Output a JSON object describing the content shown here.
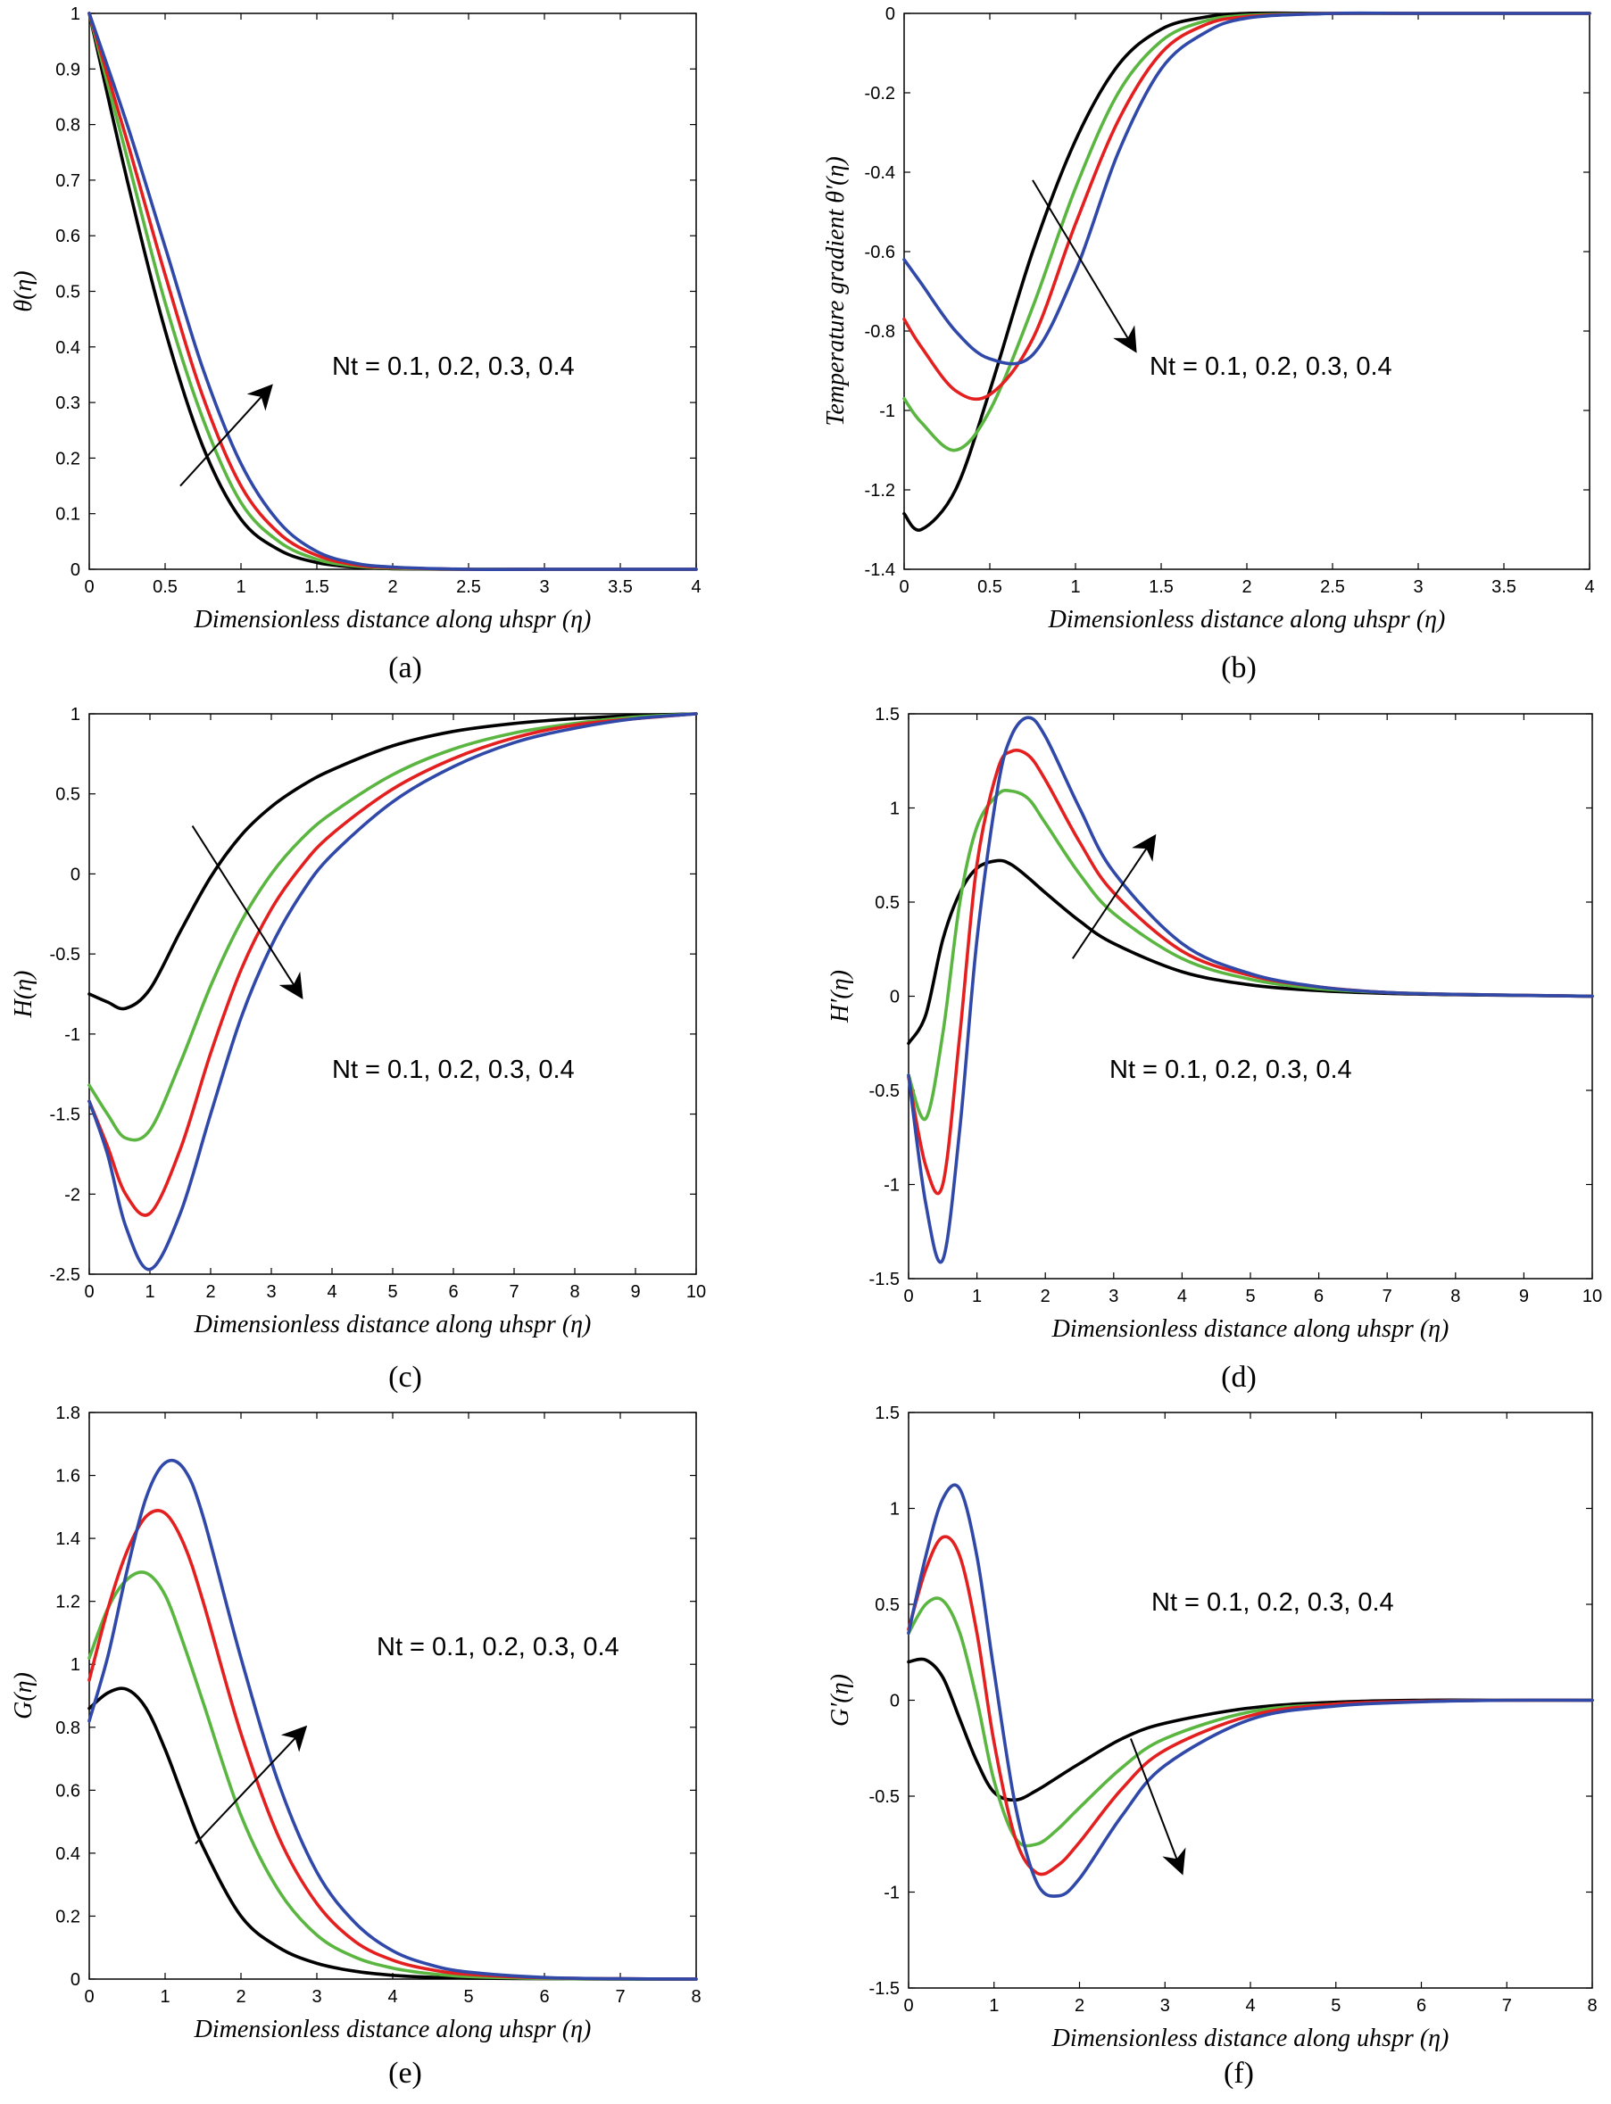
{
  "colors": {
    "Nt_0.1": "#000000",
    "Nt_0.2": "#5ab640",
    "Nt_0.3": "#e3201f",
    "Nt_0.4": "#3048a8",
    "arrow": "#000000"
  },
  "chart_data": [
    {
      "type": "line",
      "panel": "(a)",
      "xlabel": "Dimensionless distance along uhspr (η)",
      "ylabel": "θ(η)",
      "xlim": [
        0,
        4
      ],
      "ylim": [
        0,
        1
      ],
      "xticks": [
        "0",
        "0.5",
        "1",
        "1.5",
        "2",
        "2.5",
        "3",
        "3.5",
        "4"
      ],
      "yticks": [
        "0",
        "0.1",
        "0.2",
        "0.3",
        "0.4",
        "0.5",
        "0.6",
        "0.7",
        "0.8",
        "0.9",
        "1"
      ],
      "annotation": "Nt = 0.1, 0.2, 0.3, 0.4",
      "arrow": {
        "from": [
          0.6,
          0.15
        ],
        "to": [
          1.2,
          0.33
        ]
      },
      "x": [
        0,
        0.25,
        0.5,
        0.75,
        1,
        1.25,
        1.5,
        1.75,
        2,
        2.5,
        3,
        3.5,
        4
      ],
      "series": [
        {
          "values": [
            1,
            0.7,
            0.43,
            0.22,
            0.09,
            0.035,
            0.012,
            0.004,
            0.001,
            0,
            0,
            0,
            0
          ]
        },
        {
          "values": [
            1,
            0.74,
            0.48,
            0.27,
            0.12,
            0.05,
            0.018,
            0.006,
            0.002,
            0,
            0,
            0,
            0
          ]
        },
        {
          "values": [
            1,
            0.77,
            0.53,
            0.31,
            0.15,
            0.065,
            0.025,
            0.008,
            0.003,
            0,
            0,
            0,
            0
          ]
        },
        {
          "values": [
            1,
            0.8,
            0.58,
            0.36,
            0.19,
            0.085,
            0.032,
            0.011,
            0.004,
            0,
            0,
            0,
            0
          ]
        }
      ]
    },
    {
      "type": "line",
      "panel": "(b)",
      "xlabel": "Dimensionless distance along uhspr (η)",
      "ylabel": "Temperature gradient θ′(η)",
      "xlim": [
        0,
        4
      ],
      "ylim": [
        -1.4,
        0
      ],
      "xticks": [
        "0",
        "0.5",
        "1",
        "1.5",
        "2",
        "2.5",
        "3",
        "3.5",
        "4"
      ],
      "yticks": [
        "-1.4",
        "-1.2",
        "-1",
        "-0.8",
        "-0.6",
        "-0.4",
        "-0.2",
        "0"
      ],
      "annotation": "Nt = 0.1, 0.2, 0.3, 0.4",
      "arrow": {
        "from": [
          0.75,
          -0.42
        ],
        "to": [
          1.35,
          -0.85
        ]
      },
      "x": [
        0,
        0.1,
        0.3,
        0.5,
        0.75,
        1,
        1.25,
        1.5,
        1.75,
        2,
        2.5,
        3,
        4
      ],
      "series": [
        {
          "values": [
            -1.26,
            -1.3,
            -1.2,
            -0.95,
            -0.6,
            -0.32,
            -0.13,
            -0.04,
            -0.01,
            0,
            0,
            0,
            0
          ]
        },
        {
          "values": [
            -0.97,
            -1.03,
            -1.1,
            -1.0,
            -0.74,
            -0.44,
            -0.2,
            -0.07,
            -0.02,
            -0.005,
            0,
            0,
            0
          ]
        },
        {
          "values": [
            -0.77,
            -0.84,
            -0.95,
            -0.96,
            -0.82,
            -0.53,
            -0.27,
            -0.1,
            -0.03,
            -0.008,
            0,
            0,
            0
          ]
        },
        {
          "values": [
            -0.62,
            -0.68,
            -0.8,
            -0.87,
            -0.86,
            -0.65,
            -0.35,
            -0.14,
            -0.05,
            -0.012,
            0,
            0,
            0
          ]
        }
      ]
    },
    {
      "type": "line",
      "panel": "(c)",
      "xlabel": "Dimensionless distance along uhspr (η)",
      "ylabel": "H(η)",
      "xlim": [
        0,
        10
      ],
      "ylim": [
        -2.5,
        1
      ],
      "xticks": [
        "0",
        "1",
        "2",
        "3",
        "4",
        "5",
        "6",
        "7",
        "8",
        "9",
        "10"
      ],
      "yticks": [
        "-2.5",
        "-2",
        "-1.5",
        "-1",
        "-0.5",
        "0",
        "0.5",
        "1"
      ],
      "annotation": "Nt = 0.1, 0.2, 0.3, 0.4",
      "arrow": {
        "from": [
          1.7,
          0.3
        ],
        "to": [
          3.5,
          -0.77
        ]
      },
      "x": [
        0,
        0.3,
        0.6,
        1,
        1.5,
        2,
        2.5,
        3,
        3.5,
        4,
        5,
        6,
        7,
        8,
        9,
        10
      ],
      "series": [
        {
          "values": [
            -0.75,
            -0.8,
            -0.84,
            -0.72,
            -0.36,
            -0.02,
            0.24,
            0.42,
            0.55,
            0.65,
            0.8,
            0.89,
            0.94,
            0.97,
            0.99,
            1
          ]
        },
        {
          "values": [
            -1.32,
            -1.5,
            -1.65,
            -1.6,
            -1.18,
            -0.7,
            -0.3,
            0.0,
            0.22,
            0.38,
            0.62,
            0.78,
            0.88,
            0.94,
            0.98,
            1
          ]
        },
        {
          "values": [
            -1.42,
            -1.7,
            -2.0,
            -2.12,
            -1.72,
            -1.12,
            -0.6,
            -0.22,
            0.05,
            0.25,
            0.53,
            0.72,
            0.85,
            0.93,
            0.97,
            1
          ]
        },
        {
          "values": [
            -1.42,
            -1.75,
            -2.2,
            -2.47,
            -2.12,
            -1.5,
            -0.9,
            -0.45,
            -0.12,
            0.12,
            0.45,
            0.67,
            0.82,
            0.91,
            0.97,
            1
          ]
        }
      ]
    },
    {
      "type": "line",
      "panel": "(d)",
      "xlabel": "Dimensionless distance along uhspr (η)",
      "ylabel": "H′(η)",
      "xlim": [
        0,
        10
      ],
      "ylim": [
        -1.5,
        1.5
      ],
      "xticks": [
        "0",
        "1",
        "2",
        "3",
        "4",
        "5",
        "6",
        "7",
        "8",
        "9",
        "10"
      ],
      "yticks": [
        "-1.5",
        "-1",
        "-0.5",
        "0",
        "0.5",
        "1",
        "1.5"
      ],
      "annotation": "Nt = 0.1, 0.2, 0.3, 0.4",
      "arrow": {
        "from": [
          2.4,
          0.2
        ],
        "to": [
          3.6,
          0.85
        ]
      },
      "x": [
        0,
        0.25,
        0.5,
        0.75,
        1,
        1.3,
        1.5,
        1.75,
        2,
        2.5,
        3,
        4,
        5,
        6,
        7,
        8,
        10
      ],
      "series": [
        {
          "values": [
            -0.25,
            -0.1,
            0.3,
            0.55,
            0.68,
            0.72,
            0.7,
            0.63,
            0.55,
            0.4,
            0.28,
            0.13,
            0.06,
            0.03,
            0.015,
            0.008,
            0
          ]
        },
        {
          "values": [
            -0.42,
            -0.65,
            -0.2,
            0.5,
            0.9,
            1.07,
            1.09,
            1.05,
            0.92,
            0.65,
            0.44,
            0.2,
            0.09,
            0.04,
            0.02,
            0.01,
            0
          ]
        },
        {
          "values": [
            -0.43,
            -0.9,
            -1.0,
            -0.2,
            0.7,
            1.2,
            1.3,
            1.28,
            1.15,
            0.82,
            0.55,
            0.24,
            0.11,
            0.05,
            0.02,
            0.01,
            0
          ]
        },
        {
          "values": [
            -0.42,
            -1.1,
            -1.4,
            -0.7,
            0.3,
            1.1,
            1.38,
            1.48,
            1.38,
            1.0,
            0.66,
            0.28,
            0.12,
            0.05,
            0.02,
            0.01,
            0
          ]
        }
      ]
    },
    {
      "type": "line",
      "panel": "(e)",
      "xlabel": "Dimensionless distance along uhspr (η)",
      "ylabel": "G(η)",
      "xlim": [
        0,
        8
      ],
      "ylim": [
        0,
        1.8
      ],
      "xticks": [
        "0",
        "1",
        "2",
        "3",
        "4",
        "5",
        "6",
        "7",
        "8"
      ],
      "yticks": [
        "0",
        "0.2",
        "0.4",
        "0.6",
        "0.8",
        "1",
        "1.2",
        "1.4",
        "1.6",
        "1.8"
      ],
      "annotation": "Nt = 0.1, 0.2, 0.3, 0.4",
      "arrow": {
        "from": [
          1.4,
          0.43
        ],
        "to": [
          2.85,
          0.8
        ]
      },
      "x": [
        0,
        0.25,
        0.5,
        0.75,
        1,
        1.25,
        1.5,
        2,
        2.5,
        3,
        3.5,
        4,
        4.5,
        5,
        6,
        7,
        8
      ],
      "series": [
        {
          "values": [
            0.86,
            0.91,
            0.92,
            0.86,
            0.73,
            0.57,
            0.42,
            0.2,
            0.1,
            0.05,
            0.025,
            0.012,
            0.006,
            0.003,
            0.001,
            0,
            0
          ]
        },
        {
          "values": [
            1.02,
            1.18,
            1.27,
            1.29,
            1.22,
            1.06,
            0.88,
            0.52,
            0.28,
            0.14,
            0.07,
            0.035,
            0.017,
            0.008,
            0.002,
            0,
            0
          ]
        },
        {
          "values": [
            0.95,
            1.18,
            1.36,
            1.47,
            1.48,
            1.38,
            1.2,
            0.78,
            0.45,
            0.24,
            0.12,
            0.06,
            0.03,
            0.015,
            0.004,
            0.001,
            0
          ]
        },
        {
          "values": [
            0.82,
            1.03,
            1.3,
            1.53,
            1.64,
            1.62,
            1.47,
            1.02,
            0.62,
            0.34,
            0.18,
            0.09,
            0.045,
            0.022,
            0.005,
            0.001,
            0
          ]
        }
      ]
    },
    {
      "type": "line",
      "panel": "(f)",
      "xlabel": "Dimensionless distance along uhspr (η)",
      "ylabel": "G′(η)",
      "xlim": [
        0,
        8
      ],
      "ylim": [
        -1.5,
        1.5
      ],
      "xticks": [
        "0",
        "1",
        "2",
        "3",
        "4",
        "5",
        "6",
        "7",
        "8"
      ],
      "yticks": [
        "-1.5",
        "-1",
        "-0.5",
        "0",
        "0.5",
        "1",
        "1.5"
      ],
      "annotation": "Nt = 0.1, 0.2, 0.3, 0.4",
      "arrow": {
        "from": [
          2.6,
          -0.2
        ],
        "to": [
          3.2,
          -0.9
        ]
      },
      "x": [
        0,
        0.2,
        0.4,
        0.6,
        0.8,
        1,
        1.25,
        1.5,
        1.75,
        2,
        2.5,
        3,
        4,
        5,
        6,
        7,
        8
      ],
      "series": [
        {
          "values": [
            0.2,
            0.21,
            0.12,
            -0.1,
            -0.32,
            -0.48,
            -0.52,
            -0.47,
            -0.4,
            -0.33,
            -0.2,
            -0.12,
            -0.04,
            -0.01,
            0,
            0,
            0
          ]
        },
        {
          "values": [
            0.35,
            0.5,
            0.52,
            0.35,
            0.0,
            -0.42,
            -0.72,
            -0.75,
            -0.67,
            -0.56,
            -0.35,
            -0.2,
            -0.06,
            -0.02,
            -0.005,
            0,
            0
          ]
        },
        {
          "values": [
            0.37,
            0.68,
            0.85,
            0.75,
            0.35,
            -0.22,
            -0.72,
            -0.9,
            -0.86,
            -0.74,
            -0.46,
            -0.26,
            -0.08,
            -0.02,
            -0.005,
            0,
            0
          ]
        },
        {
          "values": [
            0.35,
            0.75,
            1.05,
            1.1,
            0.75,
            0.15,
            -0.55,
            -0.95,
            -1.02,
            -0.93,
            -0.6,
            -0.34,
            -0.1,
            -0.03,
            -0.008,
            0,
            0
          ]
        }
      ]
    }
  ]
}
